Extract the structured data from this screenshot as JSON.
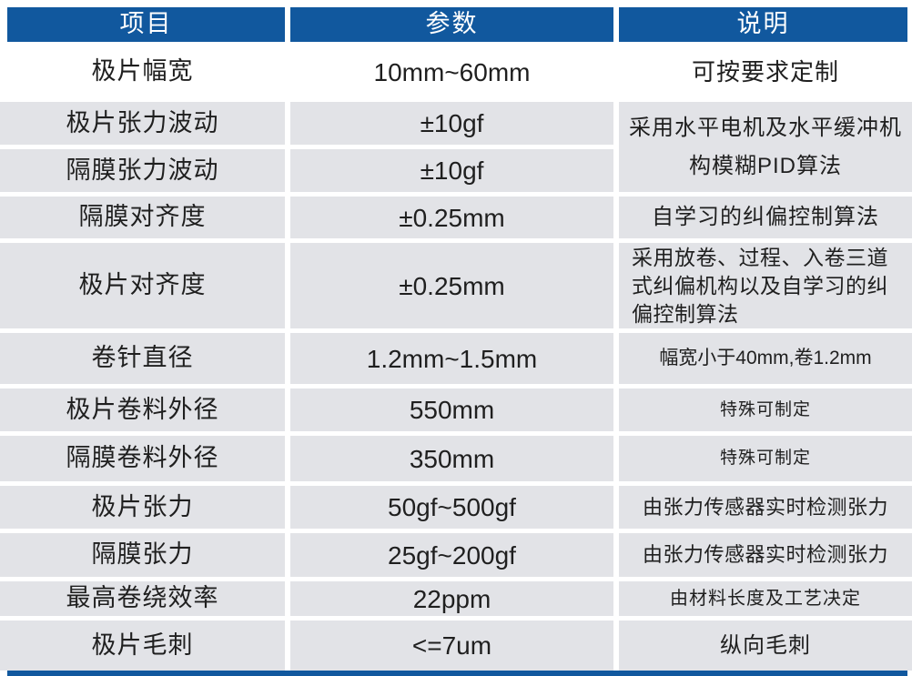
{
  "theme": {
    "header_bg": "#11589e",
    "row_gray": "#e2e3e7",
    "header_text": "#ffffff",
    "body_text": "#1f1f1f"
  },
  "table": {
    "headers": {
      "item": "项目",
      "param": "参数",
      "desc": "说明"
    },
    "rows": [
      {
        "item": "极片幅宽",
        "param": "10mm~60mm",
        "desc": "可按要求定制"
      },
      {
        "item": "极片张力波动",
        "param": "±10gf",
        "desc": "采用水平电机及水平缓冲机构模糊PID算法"
      },
      {
        "item": "隔膜张力波动",
        "param": "±10gf",
        "desc": ""
      },
      {
        "item": "隔膜对齐度",
        "param": "±0.25mm",
        "desc": "自学习的纠偏控制算法"
      },
      {
        "item": "极片对齐度",
        "param": "±0.25mm",
        "desc": "采用放卷、过程、入卷三道式纠偏机构以及自学习的纠偏控制算法"
      },
      {
        "item": "卷针直径",
        "param": "1.2mm~1.5mm",
        "desc": "幅宽小于40mm,卷1.2mm"
      },
      {
        "item": "极片卷料外径",
        "param": "550mm",
        "desc": "特殊可制定"
      },
      {
        "item": "隔膜卷料外径",
        "param": "350mm",
        "desc": "特殊可制定"
      },
      {
        "item": "极片张力",
        "param": "50gf~500gf",
        "desc": "由张力传感器实时检测张力"
      },
      {
        "item": "隔膜张力",
        "param": "25gf~200gf",
        "desc": "由张力传感器实时检测张力"
      },
      {
        "item": "最高卷绕效率",
        "param": "22ppm",
        "desc": "由材料长度及工艺决定"
      },
      {
        "item": "极片毛刺",
        "param": "<=7um",
        "desc": "纵向毛刺"
      }
    ]
  }
}
